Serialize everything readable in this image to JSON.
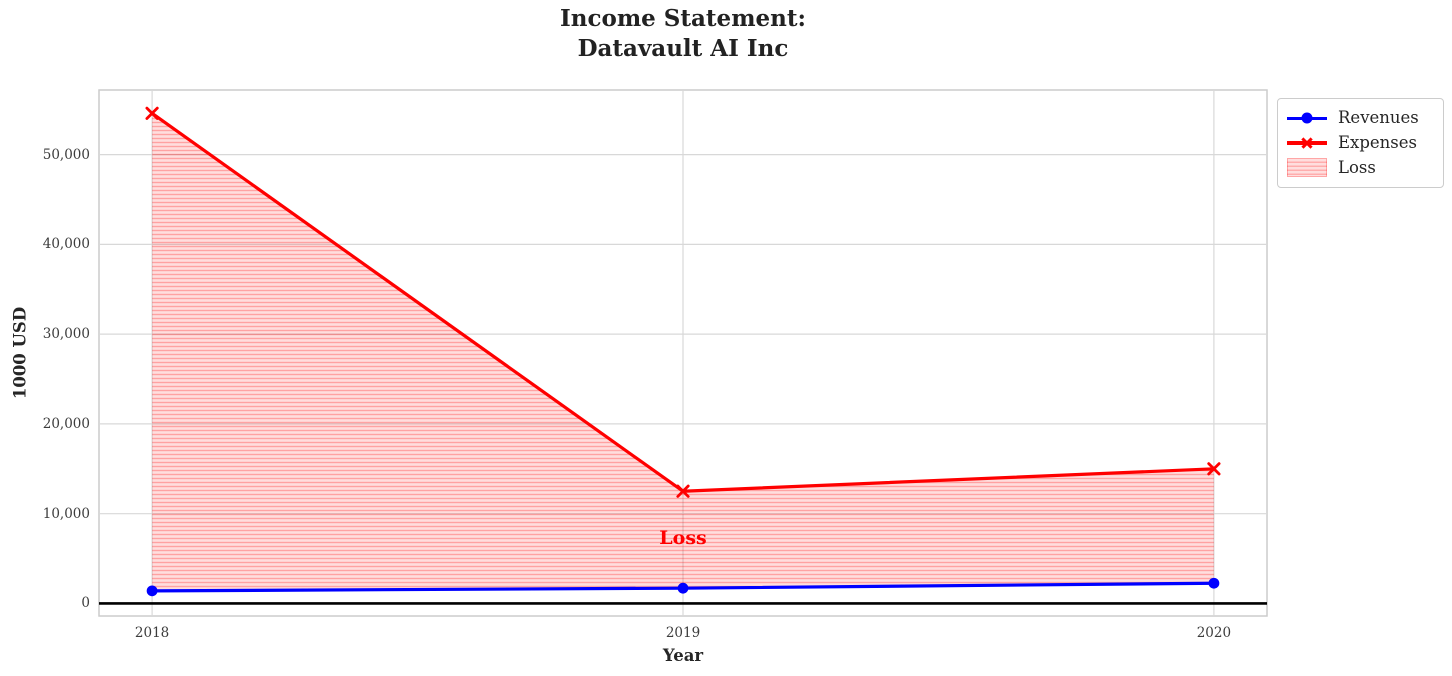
{
  "chart_data": {
    "type": "line",
    "title_lines": [
      "Income Statement:",
      "Datavault AI Inc"
    ],
    "xlabel": "Year",
    "ylabel": "1000 USD",
    "x": [
      2018,
      2019,
      2020
    ],
    "xtick_labels": [
      "2018",
      "2019",
      "2020"
    ],
    "ytick_values": [
      0,
      10000,
      20000,
      30000,
      40000,
      50000
    ],
    "ytick_labels": [
      "0",
      "10,000",
      "20,000",
      "30,000",
      "40,000",
      "50,000"
    ],
    "xlim": [
      2017.9,
      2020.1
    ],
    "ylim": [
      -1400,
      57200
    ],
    "grid": true,
    "series": [
      {
        "name": "Revenues",
        "values": [
          1400,
          1700,
          2250
        ],
        "color": "#0000ff",
        "marker": "circle"
      },
      {
        "name": "Expenses",
        "values": [
          54600,
          12500,
          15000
        ],
        "color": "#ff0000",
        "marker": "x"
      }
    ],
    "fill_between": {
      "label": "Loss",
      "lower_series": "Revenues",
      "upper_series": "Expenses",
      "fill_color": "rgba(255,0,0,0.13)",
      "hatch_color": "rgba(255,0,0,0.27)",
      "hatch": "horizontal-lines"
    },
    "annotation": {
      "text": "Loss",
      "x": 2019,
      "y": 7000,
      "color": "#ff0000"
    },
    "zero_line": {
      "y": 0,
      "color": "#000000"
    },
    "legend_position": "upper-right-outside",
    "colors": {
      "revenues": "#0000ff",
      "expenses": "#ff0000",
      "grid": "#d8d8d8",
      "spine": "#cccccc",
      "text": "#262626",
      "background": "#ffffff"
    }
  }
}
